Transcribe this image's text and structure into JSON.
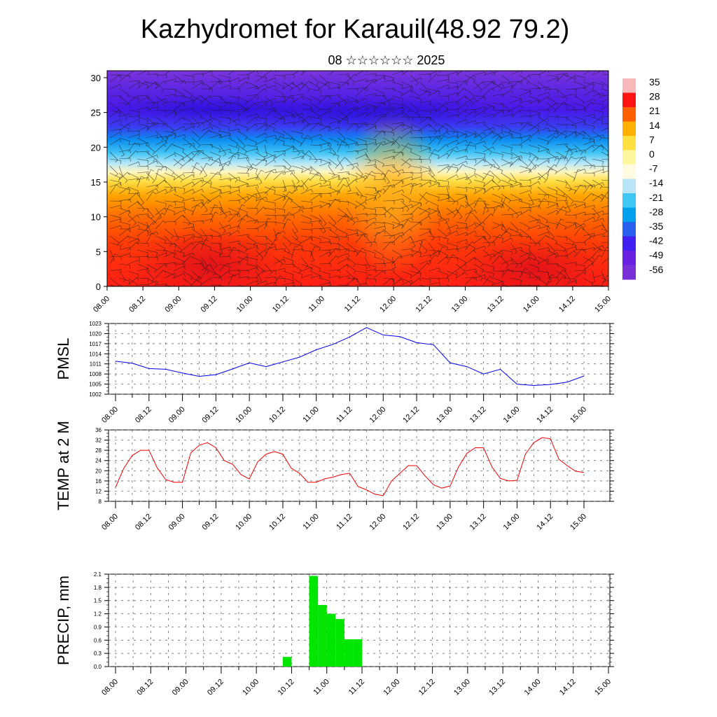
{
  "title": "Kazhydromet for Karauil(48.92 79.2)",
  "subtitle": "08 ☆☆☆☆☆☆ 2025",
  "time_ticks": [
    "08.00",
    "08.12",
    "09.00",
    "09.12",
    "10.00",
    "10.12",
    "11.00",
    "11.12",
    "12.00",
    "12.12",
    "13.00",
    "13.12",
    "14.00",
    "14.12",
    "15.00"
  ],
  "chart_data": [
    {
      "type": "heatmap",
      "name": "temperature-wind-cross-section",
      "x_range_hours": [
        0,
        168
      ],
      "ylim": [
        0,
        31
      ],
      "yticks": [
        0,
        5,
        10,
        15,
        20,
        25,
        30
      ],
      "colorbar": {
        "labels": [
          "35",
          "28",
          "21",
          "14",
          "7",
          "0",
          "-7",
          "-14",
          "-21",
          "-28",
          "-35",
          "-42",
          "-49",
          "-56"
        ],
        "colors": [
          "#f6b8b8",
          "#ff1414",
          "#ff6000",
          "#ffb000",
          "#ffe040",
          "#fff6a0",
          "#fffbe0",
          "#b8e6f6",
          "#40c8f4",
          "#00a0ee",
          "#2a60f0",
          "#4020f0",
          "#6a20e0",
          "#7a30d8"
        ]
      },
      "wind_barbs": true
    },
    {
      "type": "line",
      "ylabel": "PMSL",
      "ylim": [
        1002,
        1023
      ],
      "yticks": [
        1002,
        1005,
        1008,
        1011,
        1014,
        1017,
        1020,
        1023
      ],
      "color": "#0000ee",
      "x_hours": [
        0,
        6,
        12,
        18,
        24,
        30,
        36,
        42,
        48,
        54,
        60,
        66,
        72,
        78,
        84,
        90,
        96,
        102,
        108,
        114,
        120,
        126,
        132,
        138,
        144,
        150,
        156,
        162,
        168
      ],
      "values": [
        1011.8,
        1011.2,
        1009.6,
        1009.4,
        1008.3,
        1007.3,
        1007.8,
        1009.5,
        1011.3,
        1010.2,
        1011.6,
        1013.0,
        1015.2,
        1016.8,
        1019.0,
        1021.8,
        1019.6,
        1019.1,
        1017.3,
        1016.7,
        1011.3,
        1010.2,
        1008.0,
        1009.4,
        1005.0,
        1004.6,
        1004.9,
        1005.6,
        1007.4
      ],
      "grid": true
    },
    {
      "type": "line",
      "ylabel": "TEMP at 2 M",
      "ylim": [
        8,
        36
      ],
      "yticks": [
        8,
        12,
        16,
        20,
        24,
        28,
        32,
        36
      ],
      "color": "#ee0000",
      "x_hours": [
        0,
        3,
        6,
        9,
        12,
        15,
        18,
        21,
        24,
        27,
        30,
        33,
        36,
        39,
        42,
        45,
        48,
        51,
        54,
        57,
        60,
        63,
        66,
        69,
        72,
        75,
        78,
        81,
        84,
        87,
        90,
        93,
        96,
        99,
        102,
        105,
        108,
        111,
        114,
        117,
        120,
        123,
        126,
        129,
        132,
        135,
        138,
        141,
        144,
        147,
        150,
        153,
        156,
        159,
        162,
        165,
        168
      ],
      "values": [
        13.5,
        21,
        26,
        28,
        28,
        21,
        16.5,
        15.5,
        15.5,
        27,
        30,
        31,
        29,
        24,
        22.5,
        18.5,
        16.8,
        23.5,
        26.5,
        27.5,
        26.5,
        21,
        19,
        15.5,
        15.5,
        16.8,
        17.5,
        18.5,
        19,
        13.8,
        12.5,
        10.8,
        10.2,
        16,
        19,
        22,
        22,
        18,
        14.5,
        13.2,
        14,
        21.5,
        26.8,
        29,
        29,
        21.5,
        17,
        16,
        16.2,
        26.5,
        31,
        33,
        32.5,
        24.5,
        22,
        19.8,
        19.3
      ],
      "grid": true
    },
    {
      "type": "bar",
      "ylabel": "PRECIP, mm",
      "ylim": [
        0,
        2.1
      ],
      "yticks": [
        "0.0",
        "0.3",
        "0.6",
        "0.9",
        "1.2",
        "1.5",
        "1.8",
        "2.1"
      ],
      "color": "#00e600",
      "bar_width_hours": 3,
      "x_hours": [
        57,
        66,
        69,
        72,
        75,
        78,
        81
      ],
      "values": [
        0.22,
        2.06,
        1.4,
        1.2,
        1.08,
        0.62,
        0.62
      ],
      "grid": true
    }
  ]
}
